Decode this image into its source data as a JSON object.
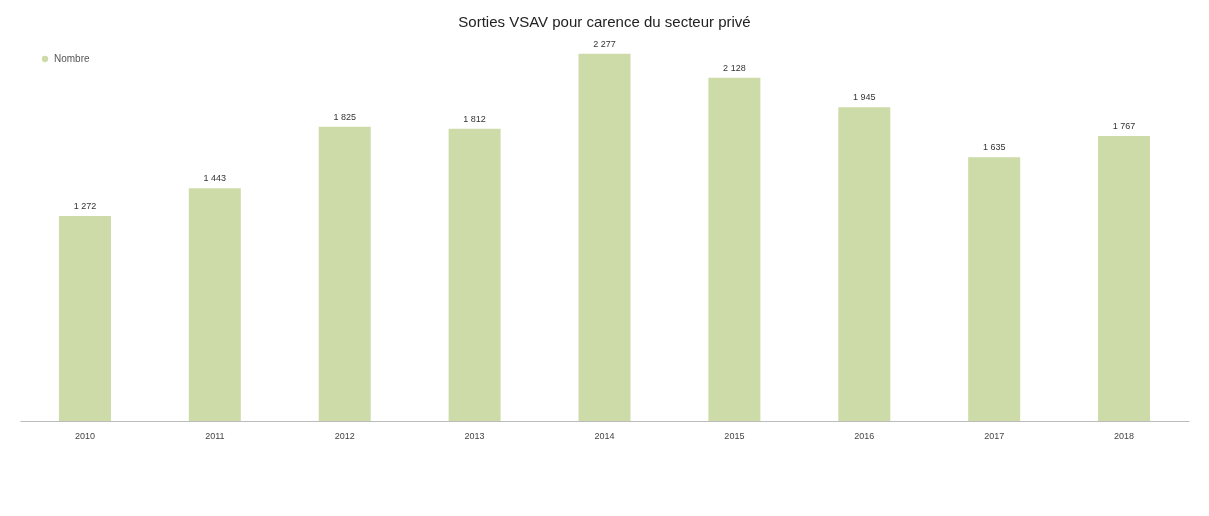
{
  "chart_data": {
    "type": "bar",
    "title": "Sorties VSAV pour carence du secteur privé",
    "categories": [
      "2010",
      "2011",
      "2012",
      "2013",
      "2014",
      "2015",
      "2016",
      "2017",
      "2018"
    ],
    "series": [
      {
        "name": "Nombre",
        "color": "#cddba8",
        "values": [
          1272,
          1443,
          1825,
          1812,
          2277,
          2128,
          1945,
          1635,
          1767
        ]
      }
    ],
    "data_labels": true,
    "legend": "top left",
    "grid": false
  }
}
